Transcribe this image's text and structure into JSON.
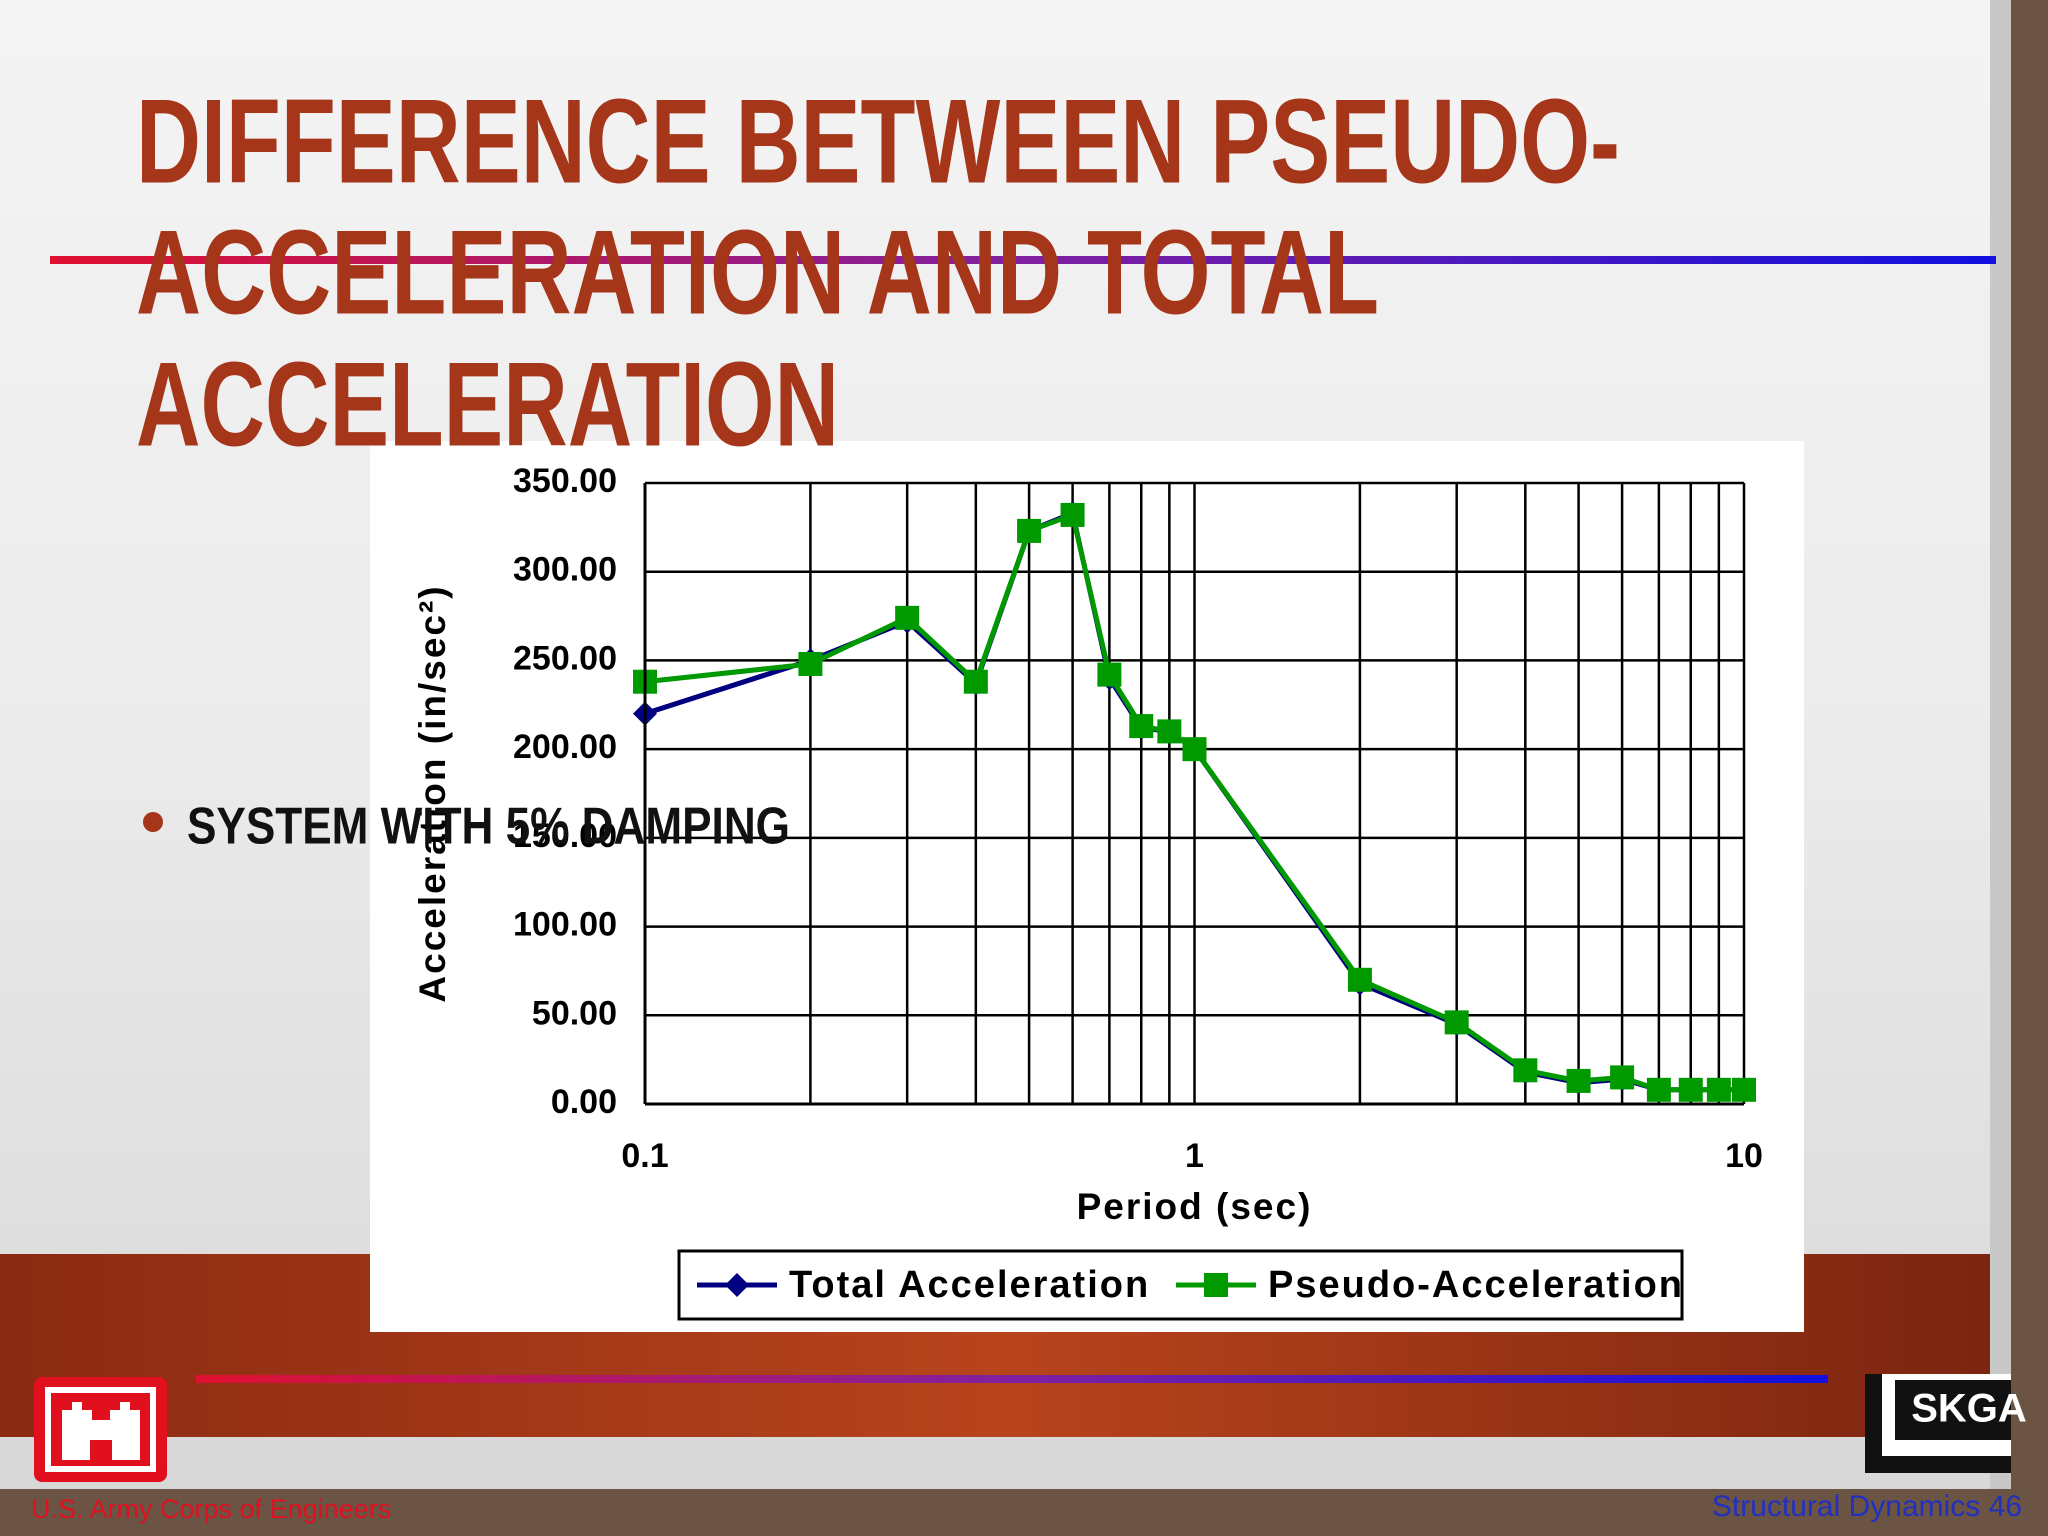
{
  "slide": {
    "title_lines": [
      "DIFFERENCE BETWEEN PSEUDO-",
      "ACCELERATION AND TOTAL",
      "ACCELERATION"
    ],
    "bullet": "SYSTEM WITH 5% DAMPING",
    "footer_left": "U.S. Army Corps of Engineers",
    "footer_right": "Structural Dynamics 46",
    "logo_text": "SKGA"
  },
  "chart_data": {
    "type": "line",
    "x_label": "Period (sec)",
    "y_label": "Acceleration (in/sec²)",
    "x_scale": "log",
    "x": [
      0.1,
      0.2,
      0.3,
      0.4,
      0.5,
      0.6,
      0.7,
      0.8,
      0.9,
      1,
      2,
      3,
      4,
      5,
      6,
      7,
      8,
      9,
      10
    ],
    "series": [
      {
        "name": "Total Acceleration",
        "color": "#000080",
        "marker": "diamond",
        "values": [
          220,
          250,
          272,
          237,
          323,
          333,
          240,
          212,
          210,
          200,
          68,
          45,
          18,
          12,
          14,
          8,
          8,
          8,
          8
        ]
      },
      {
        "name": "Pseudo-Acceleration",
        "color": "#009900",
        "marker": "square",
        "values": [
          238,
          248,
          274,
          238,
          323,
          332,
          242,
          213,
          210,
          200,
          70,
          46,
          19,
          13,
          15,
          8,
          8,
          8,
          8
        ]
      }
    ],
    "xlim": [
      0.1,
      10
    ],
    "xticks": [
      0.1,
      1,
      10
    ],
    "x_minor_ticks": [
      0.2,
      0.3,
      0.4,
      0.5,
      0.6,
      0.7,
      0.8,
      0.9,
      2,
      3,
      4,
      5,
      6,
      7,
      8,
      9
    ],
    "ylim": [
      0,
      350
    ],
    "yticks": [
      {
        "value": 0,
        "label": "0.00"
      },
      {
        "value": 50,
        "label": "50.00"
      },
      {
        "value": 100,
        "label": "100.00"
      },
      {
        "value": 150,
        "label": "150.00"
      },
      {
        "value": 200,
        "label": "200.00"
      },
      {
        "value": 250,
        "label": "250.00"
      },
      {
        "value": 300,
        "label": "300.00"
      },
      {
        "value": 350,
        "label": "350.00"
      }
    ],
    "grid": true,
    "legend": "bottom"
  }
}
